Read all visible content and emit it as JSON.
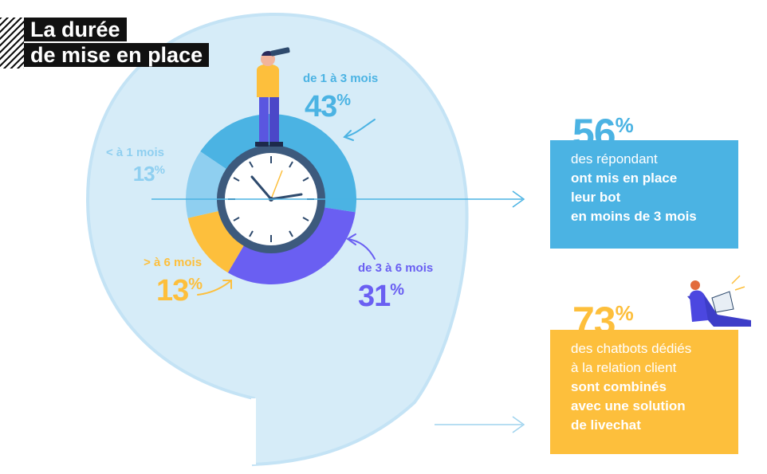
{
  "title": {
    "line1": "La durée",
    "line2": "de mise en place"
  },
  "chart_data": {
    "type": "pie",
    "categories": [
      "de 1 à 3 mois",
      "de 3 à 6 mois",
      "> à 6 mois",
      "< à 1 mois"
    ],
    "values": [
      43,
      31,
      13,
      13
    ],
    "value_labels": [
      "43",
      "31",
      "13",
      "13"
    ],
    "unit": "%",
    "colors": [
      "#4bb3e3",
      "#6a5ff2",
      "#fdbf3c",
      "#8fcff0"
    ],
    "donut": true
  },
  "stats": [
    {
      "value": "56",
      "unit": "%",
      "color": "#4bb3e3",
      "lines_normal": [
        "des répondant"
      ],
      "lines_bold": [
        "ont mis en place",
        "leur bot",
        "en moins de 3 mois"
      ]
    },
    {
      "value": "73",
      "unit": "%",
      "color": "#fdbf3c",
      "lines_normal": [
        "des chatbots dédiés",
        "à la relation client"
      ],
      "lines_bold": [
        "sont combinés",
        "avec une solution",
        "de livechat"
      ]
    }
  ],
  "colors": {
    "bubble": "#d6ecf8",
    "bubble_edge": "#c4e3f5",
    "ink": "#111111"
  },
  "icons": [
    "person-with-telescope-icon",
    "clock-icon",
    "person-with-laptop-icon",
    "arrow-right-icon",
    "curved-arrow-icon"
  ]
}
